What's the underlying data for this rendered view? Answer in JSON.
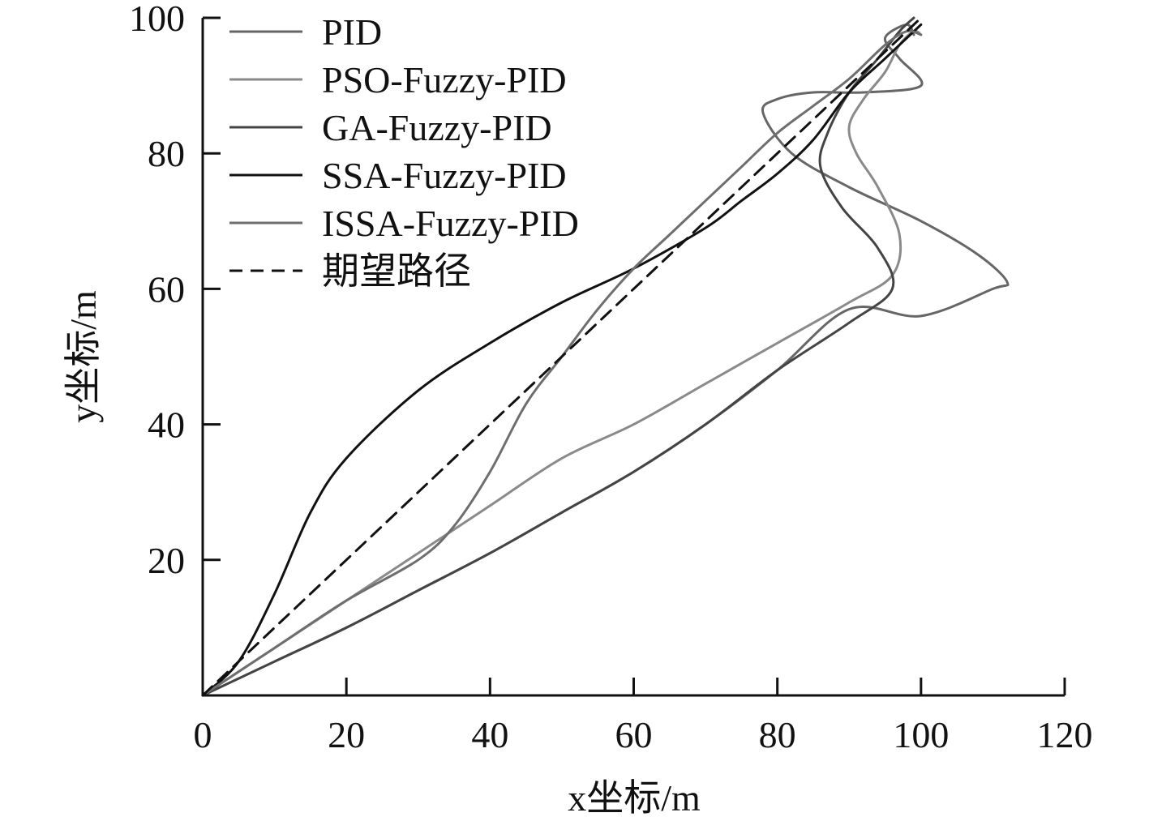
{
  "chart_data": {
    "type": "line",
    "title": "",
    "xlabel": "x坐标/m",
    "ylabel": "y坐标/m",
    "xlim": [
      0,
      120
    ],
    "ylim": [
      0,
      100
    ],
    "xticks": [
      "0",
      "20",
      "40",
      "60",
      "80",
      "100",
      "120"
    ],
    "yticks": [
      "20",
      "40",
      "60",
      "80",
      "100"
    ],
    "grid": false,
    "legend_position": "top-left",
    "series": [
      {
        "name": "PID",
        "color": "#666666",
        "dash": false,
        "points": [
          [
            0,
            0
          ],
          [
            10,
            5
          ],
          [
            20,
            10
          ],
          [
            30,
            15.5
          ],
          [
            40,
            21
          ],
          [
            50,
            27
          ],
          [
            60,
            33
          ],
          [
            70,
            40
          ],
          [
            80,
            48
          ],
          [
            90,
            57
          ],
          [
            100,
            56
          ],
          [
            110,
            60
          ],
          [
            112,
            61
          ],
          [
            108,
            65
          ],
          [
            100,
            70
          ],
          [
            90,
            75
          ],
          [
            82,
            80
          ],
          [
            78,
            86
          ],
          [
            80,
            88
          ],
          [
            85,
            89
          ],
          [
            92,
            89
          ],
          [
            100,
            90
          ],
          [
            97,
            94
          ],
          [
            95,
            97
          ],
          [
            98,
            99
          ],
          [
            99,
            97.5
          ]
        ]
      },
      {
        "name": "PSO-Fuzzy-PID",
        "color": "#8a8a8a",
        "dash": false,
        "points": [
          [
            0,
            0
          ],
          [
            10,
            7
          ],
          [
            20,
            14
          ],
          [
            30,
            21
          ],
          [
            40,
            28
          ],
          [
            50,
            35
          ],
          [
            60,
            40
          ],
          [
            70,
            46
          ],
          [
            80,
            52
          ],
          [
            90,
            58
          ],
          [
            96,
            62
          ],
          [
            97,
            68
          ],
          [
            94,
            75
          ],
          [
            91,
            80
          ],
          [
            90,
            84
          ],
          [
            92,
            88
          ],
          [
            95,
            92
          ],
          [
            97,
            96
          ],
          [
            99,
            98
          ],
          [
            100,
            97.5
          ]
        ]
      },
      {
        "name": "GA-Fuzzy-PID",
        "color": "#444444",
        "dash": false,
        "points": [
          [
            0,
            0
          ],
          [
            10,
            5
          ],
          [
            20,
            10
          ],
          [
            30,
            15.5
          ],
          [
            40,
            21
          ],
          [
            50,
            27
          ],
          [
            60,
            33
          ],
          [
            70,
            40
          ],
          [
            80,
            48
          ],
          [
            90,
            55
          ],
          [
            96,
            60
          ],
          [
            94,
            66
          ],
          [
            89,
            72
          ],
          [
            86,
            78
          ],
          [
            87,
            83
          ],
          [
            90,
            89
          ],
          [
            94,
            94
          ],
          [
            97,
            98
          ],
          [
            99,
            100
          ]
        ]
      },
      {
        "name": "SSA-Fuzzy-PID",
        "color": "#111111",
        "dash": false,
        "points": [
          [
            0,
            0
          ],
          [
            5,
            5
          ],
          [
            10,
            15
          ],
          [
            15,
            27
          ],
          [
            20,
            35
          ],
          [
            30,
            45
          ],
          [
            40,
            52
          ],
          [
            50,
            58
          ],
          [
            60,
            63
          ],
          [
            70,
            69
          ],
          [
            75,
            73
          ],
          [
            80,
            77
          ],
          [
            85,
            82
          ],
          [
            90,
            89
          ],
          [
            95,
            94
          ],
          [
            100,
            99
          ]
        ]
      },
      {
        "name": "ISSA-Fuzzy-PID",
        "color": "#6e6e6e",
        "dash": false,
        "points": [
          [
            0,
            0
          ],
          [
            10,
            7
          ],
          [
            20,
            14
          ],
          [
            30,
            20
          ],
          [
            35,
            25
          ],
          [
            40,
            33
          ],
          [
            45,
            43
          ],
          [
            50,
            50
          ],
          [
            55,
            57
          ],
          [
            60,
            63
          ],
          [
            65,
            68
          ],
          [
            70,
            73
          ],
          [
            75,
            78
          ],
          [
            80,
            83
          ],
          [
            85,
            87
          ],
          [
            90,
            91
          ],
          [
            95,
            96
          ],
          [
            98,
            98
          ],
          [
            100,
            97.5
          ]
        ]
      },
      {
        "name": "期望路径",
        "color": "#111111",
        "dash": true,
        "points": [
          [
            0,
            0
          ],
          [
            100,
            100
          ]
        ]
      }
    ]
  }
}
